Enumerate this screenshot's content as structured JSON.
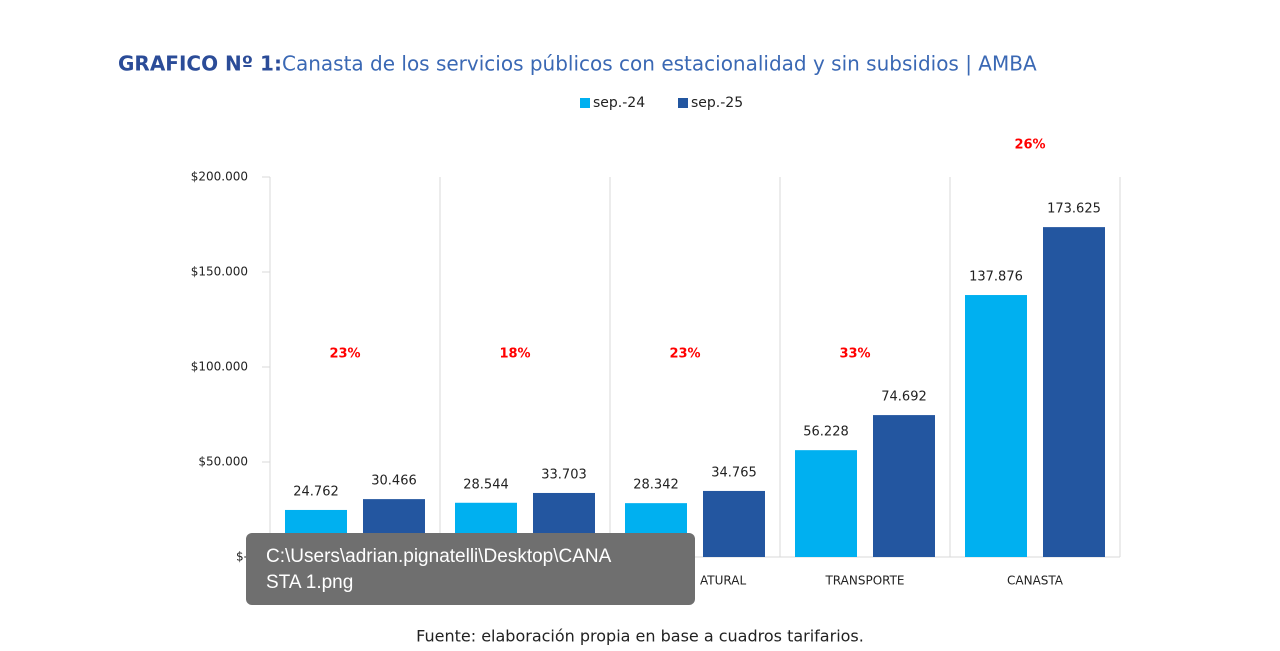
{
  "chart_data": {
    "type": "bar",
    "title_number": "GRAFICO Nº 1:",
    "title": "Canasta de los servicios públicos con estacionalidad y sin subsidios | AMBA",
    "categories": [
      null,
      null,
      "ATURAL",
      "TRANSPORTE",
      "CANASTA"
    ],
    "series": [
      {
        "name": "sep.-24",
        "color": "#00b0f0",
        "values": [
          24762,
          28544,
          28342,
          56228,
          137876
        ],
        "value_labels": [
          "24.762",
          "28.544",
          "28.342",
          "56.228",
          "137.876"
        ]
      },
      {
        "name": "sep.-25",
        "color": "#2356a0",
        "values": [
          30466,
          33703,
          34765,
          74692,
          173625
        ],
        "value_labels": [
          "30.466",
          "33.703",
          "34.765",
          "74.692",
          "173.625"
        ]
      }
    ],
    "change_labels": [
      "23%",
      "18%",
      "23%",
      "33%",
      "26%"
    ],
    "ylim": [
      0,
      200000
    ],
    "yticks": [
      {
        "value": 0,
        "label": "$-"
      },
      {
        "value": 50000,
        "label": "$50.000"
      },
      {
        "value": 100000,
        "label": "$100.000"
      },
      {
        "value": 150000,
        "label": "$150.000"
      },
      {
        "value": 200000,
        "label": "$200.000"
      }
    ],
    "legend": "top",
    "source": "Fuente: elaboración propia en base a cuadros tarifarios."
  },
  "tooltip": {
    "lines": [
      "C:\\Users\\adrian.pignatelli\\Desktop\\CANA",
      "STA 1.png"
    ]
  }
}
